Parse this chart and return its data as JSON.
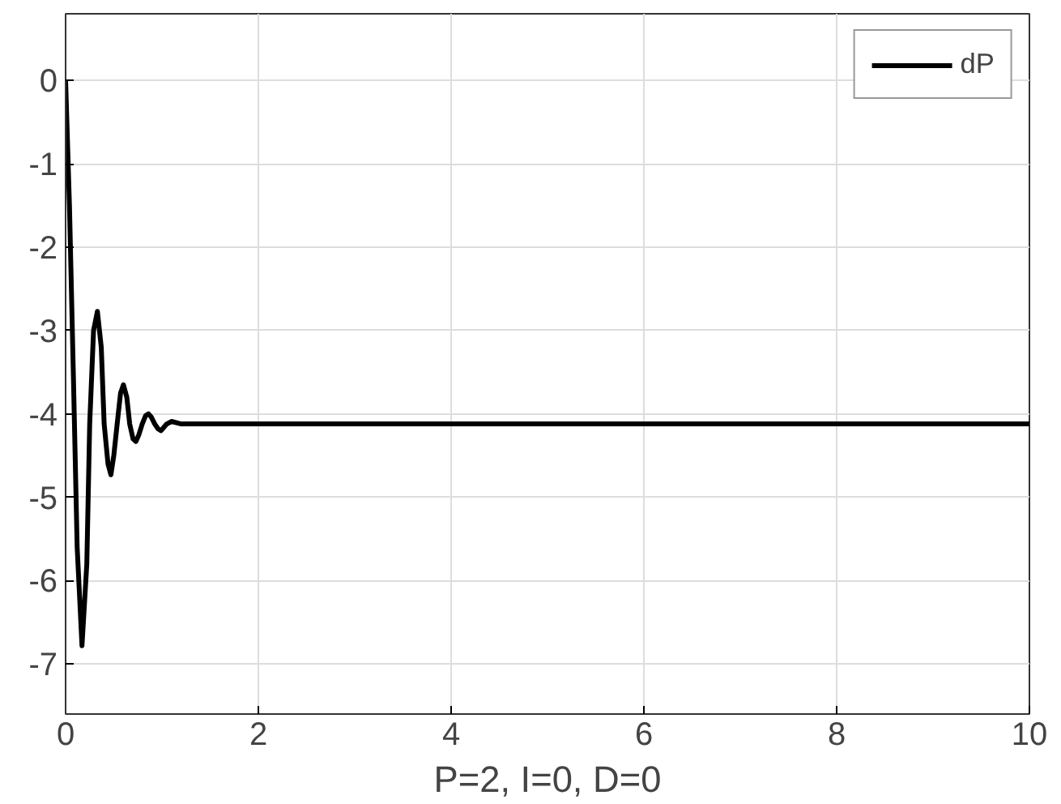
{
  "chart_data": {
    "type": "line",
    "xlabel": "P=2, I=0, D=0",
    "series": [
      {
        "name": "dP",
        "color": "#000000",
        "x": [
          0,
          0.04,
          0.08,
          0.12,
          0.17,
          0.22,
          0.25,
          0.29,
          0.33,
          0.37,
          0.4,
          0.44,
          0.47,
          0.5,
          0.535,
          0.57,
          0.6,
          0.635,
          0.665,
          0.7,
          0.73,
          0.76,
          0.795,
          0.83,
          0.86,
          0.89,
          0.925,
          0.96,
          0.99,
          1.05,
          1.1,
          1.2,
          10
        ],
        "values": [
          0,
          -1.5,
          -3.5,
          -5.6,
          -6.78,
          -5.8,
          -4.12,
          -3.0,
          -2.77,
          -3.2,
          -4.12,
          -4.6,
          -4.73,
          -4.5,
          -4.12,
          -3.75,
          -3.65,
          -3.8,
          -4.12,
          -4.3,
          -4.33,
          -4.25,
          -4.12,
          -4.02,
          -4.0,
          -4.04,
          -4.12,
          -4.18,
          -4.2,
          -4.12,
          -4.09,
          -4.12,
          -4.12
        ]
      }
    ],
    "xlim": [
      0,
      10
    ],
    "ylim": [
      -7.6,
      0.8
    ],
    "xticks": [
      0,
      2,
      4,
      6,
      8,
      10
    ],
    "yticks": [
      -7,
      -6,
      -5,
      -4,
      -3,
      -2,
      -1,
      0
    ],
    "grid": true,
    "legend": "top right",
    "line_style": "solid",
    "marker": "none"
  }
}
